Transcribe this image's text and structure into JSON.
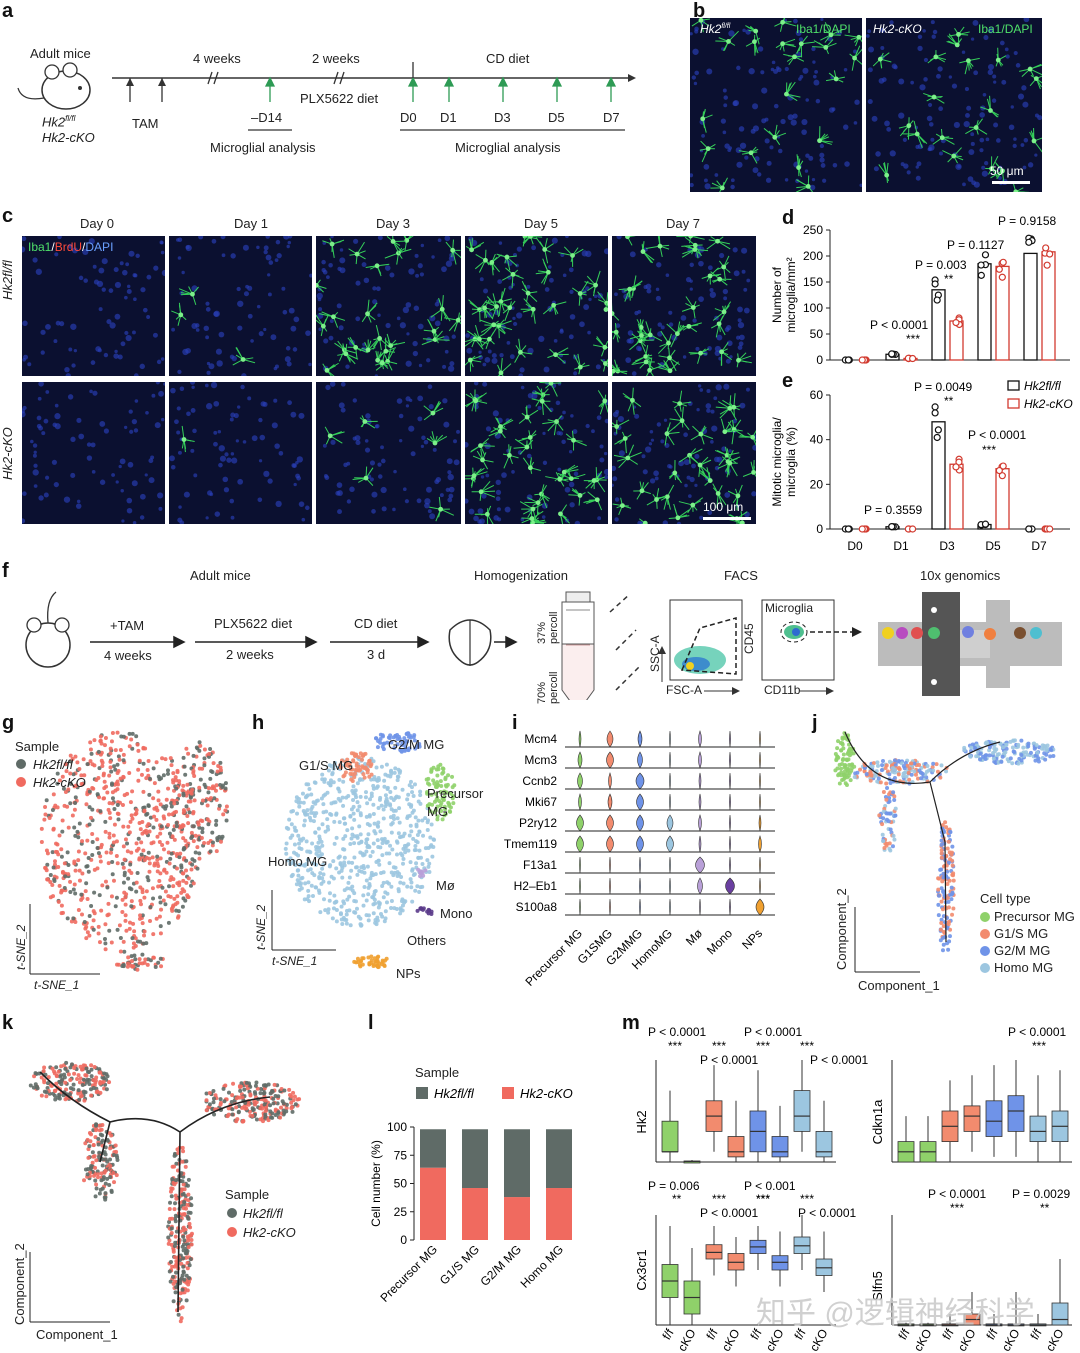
{
  "panel_letters": [
    "a",
    "b",
    "c",
    "d",
    "e",
    "f",
    "g",
    "h",
    "i",
    "j",
    "k",
    "l",
    "m"
  ],
  "a": {
    "adult_mice": "Adult mice",
    "genotypes": [
      "Hk2",
      "Hk2-cKO"
    ],
    "geno_sup": "fl/fl",
    "tam": "TAM",
    "weeks4": "4 weeks",
    "weeks2": "2 weeks",
    "plx": "PLX5622 diet",
    "cd": "CD diet",
    "timepoints": [
      "–D14",
      "D0",
      "D1",
      "D3",
      "D5",
      "D7"
    ],
    "analysis": "Microglial analysis"
  },
  "b": {
    "left_title": "Hk2",
    "left_sup": "fl/fl",
    "right_title": "Hk2-cKO",
    "stain": "Iba1/DAPI",
    "scale": "50 μm"
  },
  "c": {
    "days": [
      "Day 0",
      "Day 1",
      "Day 3",
      "Day 5",
      "Day 7"
    ],
    "row_labels": [
      "Hk2fl/fl",
      "Hk2-cKO"
    ],
    "stain_iba": "Iba1",
    "stain_brdu": "BrdU",
    "stain_dapi": "DAPI",
    "scale": "100 μm"
  },
  "d": {
    "ylabel": "Number of microglia/mm²",
    "yticks": [
      "0",
      "50",
      "100",
      "150",
      "200",
      "250"
    ],
    "stats": [
      "P < 0.0001",
      "***",
      "P = 0.003",
      "**",
      "P = 0.1127",
      "P = 0.9158"
    ]
  },
  "e": {
    "ylabel": "Mitotic microglia/ microglia (%)",
    "yticks": [
      "0",
      "20",
      "40",
      "60"
    ],
    "xticks": [
      "D0",
      "D1",
      "D3",
      "D5",
      "D7"
    ],
    "stats": [
      "P = 0.3559",
      "P = 0.0049",
      "**",
      "P < 0.0001",
      "***"
    ],
    "legend": [
      "Hk2fl/fl",
      "Hk2-cKO"
    ]
  },
  "chart_data": [
    {
      "type": "bar",
      "panel": "d",
      "categories": [
        "D0",
        "D1",
        "D3",
        "D5",
        "D7"
      ],
      "series": [
        {
          "name": "Hk2fl/fl",
          "values": [
            0,
            11,
            135,
            185,
            205
          ],
          "color": "#111111"
        },
        {
          "name": "Hk2-cKO",
          "values": [
            0,
            3,
            75,
            180,
            208
          ],
          "color": "#d23a2f"
        }
      ],
      "ylabel": "Number of microglia/mm²",
      "ylim": [
        0,
        250
      ]
    },
    {
      "type": "bar",
      "panel": "e",
      "categories": [
        "D0",
        "D1",
        "D3",
        "D5",
        "D7"
      ],
      "series": [
        {
          "name": "Hk2fl/fl",
          "values": [
            0,
            1,
            48,
            2,
            0
          ],
          "color": "#111111"
        },
        {
          "name": "Hk2-cKO",
          "values": [
            0,
            0,
            29,
            27,
            0
          ],
          "color": "#d23a2f"
        }
      ],
      "ylabel": "Mitotic microglia/ microglia (%)",
      "ylim": [
        0,
        60
      ]
    },
    {
      "type": "bar",
      "panel": "l",
      "categories": [
        "Precursor MG",
        "G1/S MG",
        "G2/M MG",
        "Homo MG"
      ],
      "series": [
        {
          "name": "Hk2fl/fl",
          "values": [
            34,
            52,
            60,
            52
          ],
          "color": "#5f6b67"
        },
        {
          "name": "Hk2-cKO",
          "values": [
            64,
            46,
            38,
            46
          ],
          "color": "#f06a5f"
        }
      ],
      "ylabel": "Cell number (%)",
      "ylim": [
        0,
        100
      ]
    }
  ],
  "f": {
    "adult_mice": "Adult mice",
    "tam": "+TAM",
    "weeks4": "4 weeks",
    "plx": "PLX5622 diet",
    "weeks2": "2 weeks",
    "cd": "CD diet",
    "d3": "3 d",
    "homog": "Homogenization",
    "percoll37": "37% percoll",
    "percoll70": "70% percoll",
    "facs": "FACS",
    "ssc": "SSC-A",
    "fsc": "FSC-A",
    "cd45": "CD45",
    "cd11b": "CD11b",
    "microglia": "Microglia",
    "tenx": "10x genomics"
  },
  "g": {
    "legend_title": "Sample",
    "legend": [
      "Hk2fl/fl",
      "Hk2-cKO"
    ],
    "x": "t-SNE_1",
    "y": "t-SNE_2"
  },
  "h": {
    "clusters": [
      "G2/M MG",
      "G1/S MG",
      "Precursor MG",
      "Homo MG",
      "Mø",
      "Mono",
      "Others",
      "NPs"
    ],
    "x": "t-SNE_1",
    "y": "t-SNE_2"
  },
  "i": {
    "genes": [
      "Mcm4",
      "Mcm3",
      "Ccnb2",
      "Mki67",
      "P2ry12",
      "Tmem119",
      "F13a1",
      "H2–Eb1",
      "S100a8"
    ],
    "groups": [
      "Precursor MG",
      "G1SMG",
      "G2MMG",
      "HomoMG",
      "Mø",
      "Mono",
      "NPs"
    ]
  },
  "j": {
    "legend_title": "Cell  type",
    "legend": [
      "Precursor MG",
      "G1/S MG",
      "G2/M MG",
      "Homo MG"
    ],
    "x": "Component_1",
    "y": "Component_2"
  },
  "k": {
    "legend_title": "Sample",
    "legend": [
      "Hk2fl/fl",
      "Hk2-cKO"
    ],
    "x": "Component_1",
    "y": "Component_2"
  },
  "l": {
    "legend_title": "Sample",
    "legend": [
      "Hk2fl/fl",
      "Hk2-cKO"
    ],
    "ylabel": "Cell number (%)",
    "yticks": [
      "0",
      "25",
      "50",
      "75",
      "100"
    ],
    "xticks": [
      "Precursor MG",
      "G1/S MG",
      "G2/M MG",
      "Homo MG"
    ]
  },
  "m": {
    "genes": [
      "Hk2",
      "Cdkn1a",
      "Cx3cr1",
      "Slfn5"
    ],
    "hk2_stats": [
      "P < 0.0001",
      "***",
      "***",
      "P < 0.0001",
      "***",
      "P < 0.0001",
      "***",
      "P < 0.0001"
    ],
    "cdkn_stats": [
      "P < 0.0001",
      "***"
    ],
    "cx_stats": [
      "P = 0.006",
      "**",
      "***",
      "P < 0.0001",
      "***",
      "P < 0.001",
      "***",
      "***",
      "P < 0.0001"
    ],
    "slfn_stats": [
      "P < 0.0001",
      "***",
      "P = 0.0029",
      "**"
    ],
    "xticks": [
      "f/f",
      "cKO",
      "f/f",
      "cKO",
      "f/f",
      "cKO",
      "f/f",
      "cKO"
    ]
  },
  "watermark": "知乎 @逻辑神经科学",
  "colors": {
    "wt": "#111111",
    "ko": "#d23a2f",
    "grey": "#5f6b67",
    "salmon": "#f06a5f",
    "precursor": "#8fd16a",
    "g1s": "#f28b6e",
    "g2m": "#6f93e8",
    "homo": "#9cc6e0",
    "iba1": "#35d05a"
  }
}
